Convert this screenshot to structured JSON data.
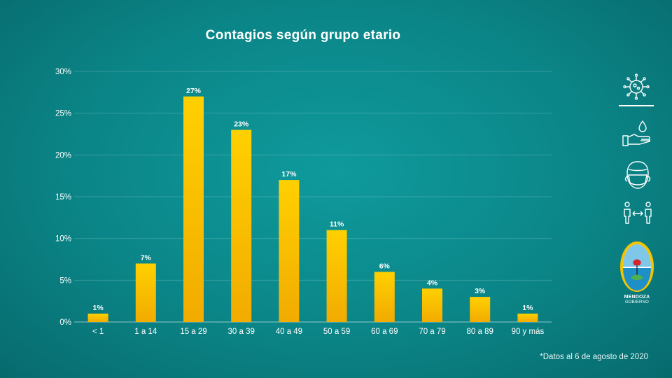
{
  "chart_data": {
    "type": "bar",
    "title": "Contagios según grupo etario",
    "categories": [
      "< 1",
      "1 a 14",
      "15 a 29",
      "30 a 39",
      "40 a 49",
      "50 a 59",
      "60 a 69",
      "70 a 79",
      "80 a 89",
      "90 y más"
    ],
    "values": [
      1,
      7,
      27,
      23,
      17,
      11,
      6,
      4,
      3,
      1
    ],
    "data_labels": [
      "1%",
      "7%",
      "27%",
      "23%",
      "17%",
      "11%",
      "6%",
      "4%",
      "3%",
      "1%"
    ],
    "ylim": [
      0,
      30
    ],
    "yticks": [
      0,
      5,
      10,
      15,
      20,
      25,
      30
    ],
    "ytick_labels": [
      "0%",
      "5%",
      "10%",
      "15%",
      "20%",
      "25%",
      "30%"
    ],
    "xlabel": "",
    "ylabel": "",
    "grid": true,
    "legend": "none",
    "bar_color": "#f7c100"
  },
  "footnote": "*Datos al 6 de agosto de 2020",
  "sidebar": {
    "icons": [
      "virus-icon",
      "hand-wash-icon",
      "face-mask-icon",
      "social-distance-icon"
    ],
    "logo": {
      "line1": "MENDOZA",
      "line2": "GOBIERNO"
    }
  }
}
